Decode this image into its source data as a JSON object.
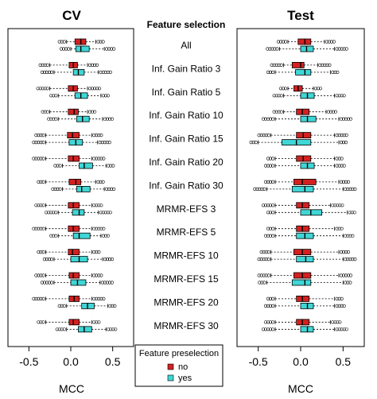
{
  "chart_data": {
    "type": "boxplot",
    "center_title": "Feature selection",
    "categories": [
      "All",
      "Inf. Gain Ratio 3",
      "Inf. Gain Ratio 5",
      "Inf. Gain Ratio 10",
      "Inf. Gain Ratio 15",
      "Inf. Gain Ratio 20",
      "Inf. Gain Ratio 30",
      "MRMR-EFS 3",
      "MRMR-EFS 5",
      "MRMR-EFS 10",
      "MRMR-EFS 15",
      "MRMR-EFS 20",
      "MRMR-EFS 30"
    ],
    "xlim": [
      -0.75,
      0.75
    ],
    "xticks": [
      -0.5,
      0,
      0.5
    ],
    "tick_labels": [
      "-0.5",
      "0.0",
      "0.5"
    ],
    "legend": {
      "title": "Feature preselection",
      "entries": [
        {
          "label": "no",
          "color": "#d42020"
        },
        {
          "label": "yes",
          "color": "#3fd6d6"
        }
      ]
    },
    "panels": [
      {
        "title": "CV",
        "xlabel": "MCC",
        "series": [
          {
            "name": "no",
            "color": "#d42020",
            "stats": [
              [
                -0.05,
                0.05,
                0.12,
                0.18,
                0.3
              ],
              [
                -0.25,
                -0.02,
                0.03,
                0.08,
                0.2
              ],
              [
                -0.25,
                -0.03,
                0.03,
                0.08,
                0.2
              ],
              [
                -0.25,
                -0.03,
                0.04,
                0.09,
                0.2
              ],
              [
                -0.3,
                -0.04,
                0.02,
                0.1,
                0.25
              ],
              [
                -0.3,
                -0.03,
                0.03,
                0.1,
                0.25
              ],
              [
                -0.3,
                -0.02,
                0.06,
                0.12,
                0.3
              ],
              [
                -0.3,
                -0.03,
                0.03,
                0.1,
                0.25
              ],
              [
                -0.3,
                -0.03,
                0.03,
                0.1,
                0.25
              ],
              [
                -0.3,
                -0.03,
                0.02,
                0.1,
                0.25
              ],
              [
                -0.3,
                -0.02,
                0.03,
                0.1,
                0.25
              ],
              [
                -0.3,
                -0.02,
                0.04,
                0.1,
                0.25
              ],
              [
                -0.3,
                -0.02,
                0.03,
                0.1,
                0.25
              ]
            ]
          },
          {
            "name": "yes",
            "color": "#3fd6d6",
            "stats": [
              [
                0.0,
                0.06,
                0.12,
                0.22,
                0.4
              ],
              [
                -0.2,
                0.03,
                0.09,
                0.16,
                0.33
              ],
              [
                -0.15,
                0.05,
                0.12,
                0.2,
                0.36
              ],
              [
                -0.15,
                0.07,
                0.14,
                0.22,
                0.38
              ],
              [
                -0.3,
                -0.02,
                0.06,
                0.14,
                0.32
              ],
              [
                -0.1,
                0.1,
                0.16,
                0.26,
                0.42
              ],
              [
                -0.1,
                0.07,
                0.13,
                0.23,
                0.4
              ],
              [
                -0.15,
                0.02,
                0.1,
                0.16,
                0.33
              ],
              [
                -0.15,
                0.03,
                0.1,
                0.23,
                0.36
              ],
              [
                -0.2,
                0.0,
                0.1,
                0.2,
                0.38
              ],
              [
                -0.2,
                0.0,
                0.08,
                0.18,
                0.35
              ],
              [
                -0.05,
                0.13,
                0.2,
                0.28,
                0.44
              ],
              [
                -0.05,
                0.09,
                0.16,
                0.25,
                0.42
              ]
            ]
          }
        ]
      },
      {
        "title": "Test",
        "xlabel": "MCC",
        "series": [
          {
            "name": "no",
            "color": "#d42020",
            "stats": [
              [
                -0.15,
                -0.03,
                0.05,
                0.12,
                0.28
              ],
              [
                -0.2,
                -0.1,
                0.0,
                0.04,
                0.2
              ],
              [
                -0.15,
                -0.08,
                -0.03,
                0.02,
                0.15
              ],
              [
                -0.2,
                -0.05,
                0.02,
                0.1,
                0.3
              ],
              [
                -0.35,
                -0.05,
                0.03,
                0.12,
                0.4
              ],
              [
                -0.3,
                -0.05,
                0.03,
                0.12,
                0.4
              ],
              [
                -0.3,
                -0.08,
                0.02,
                0.18,
                0.45
              ],
              [
                -0.3,
                -0.05,
                0.02,
                0.1,
                0.35
              ],
              [
                -0.3,
                -0.05,
                0.02,
                0.1,
                0.4
              ],
              [
                -0.35,
                -0.08,
                0.02,
                0.12,
                0.45
              ],
              [
                -0.35,
                -0.08,
                0.02,
                0.12,
                0.45
              ],
              [
                -0.3,
                -0.05,
                0.02,
                0.1,
                0.4
              ],
              [
                -0.3,
                -0.05,
                0.02,
                0.1,
                0.35
              ]
            ]
          },
          {
            "name": "yes",
            "color": "#3fd6d6",
            "stats": [
              [
                -0.25,
                0.0,
                0.07,
                0.15,
                0.4
              ],
              [
                -0.3,
                -0.06,
                0.05,
                0.12,
                0.35
              ],
              [
                -0.2,
                0.0,
                0.08,
                0.16,
                0.4
              ],
              [
                -0.3,
                0.0,
                0.08,
                0.18,
                0.45
              ],
              [
                -0.5,
                -0.22,
                -0.05,
                0.12,
                0.45
              ],
              [
                -0.3,
                0.0,
                0.08,
                0.16,
                0.4
              ],
              [
                -0.4,
                -0.1,
                0.05,
                0.15,
                0.5
              ],
              [
                -0.3,
                0.0,
                0.12,
                0.25,
                0.55
              ],
              [
                -0.3,
                -0.05,
                0.05,
                0.15,
                0.5
              ],
              [
                -0.35,
                -0.05,
                0.06,
                0.15,
                0.5
              ],
              [
                -0.4,
                -0.1,
                0.05,
                0.12,
                0.5
              ],
              [
                -0.3,
                0.0,
                0.08,
                0.15,
                0.4
              ],
              [
                -0.3,
                0.0,
                0.08,
                0.15,
                0.4
              ]
            ]
          }
        ]
      }
    ]
  }
}
